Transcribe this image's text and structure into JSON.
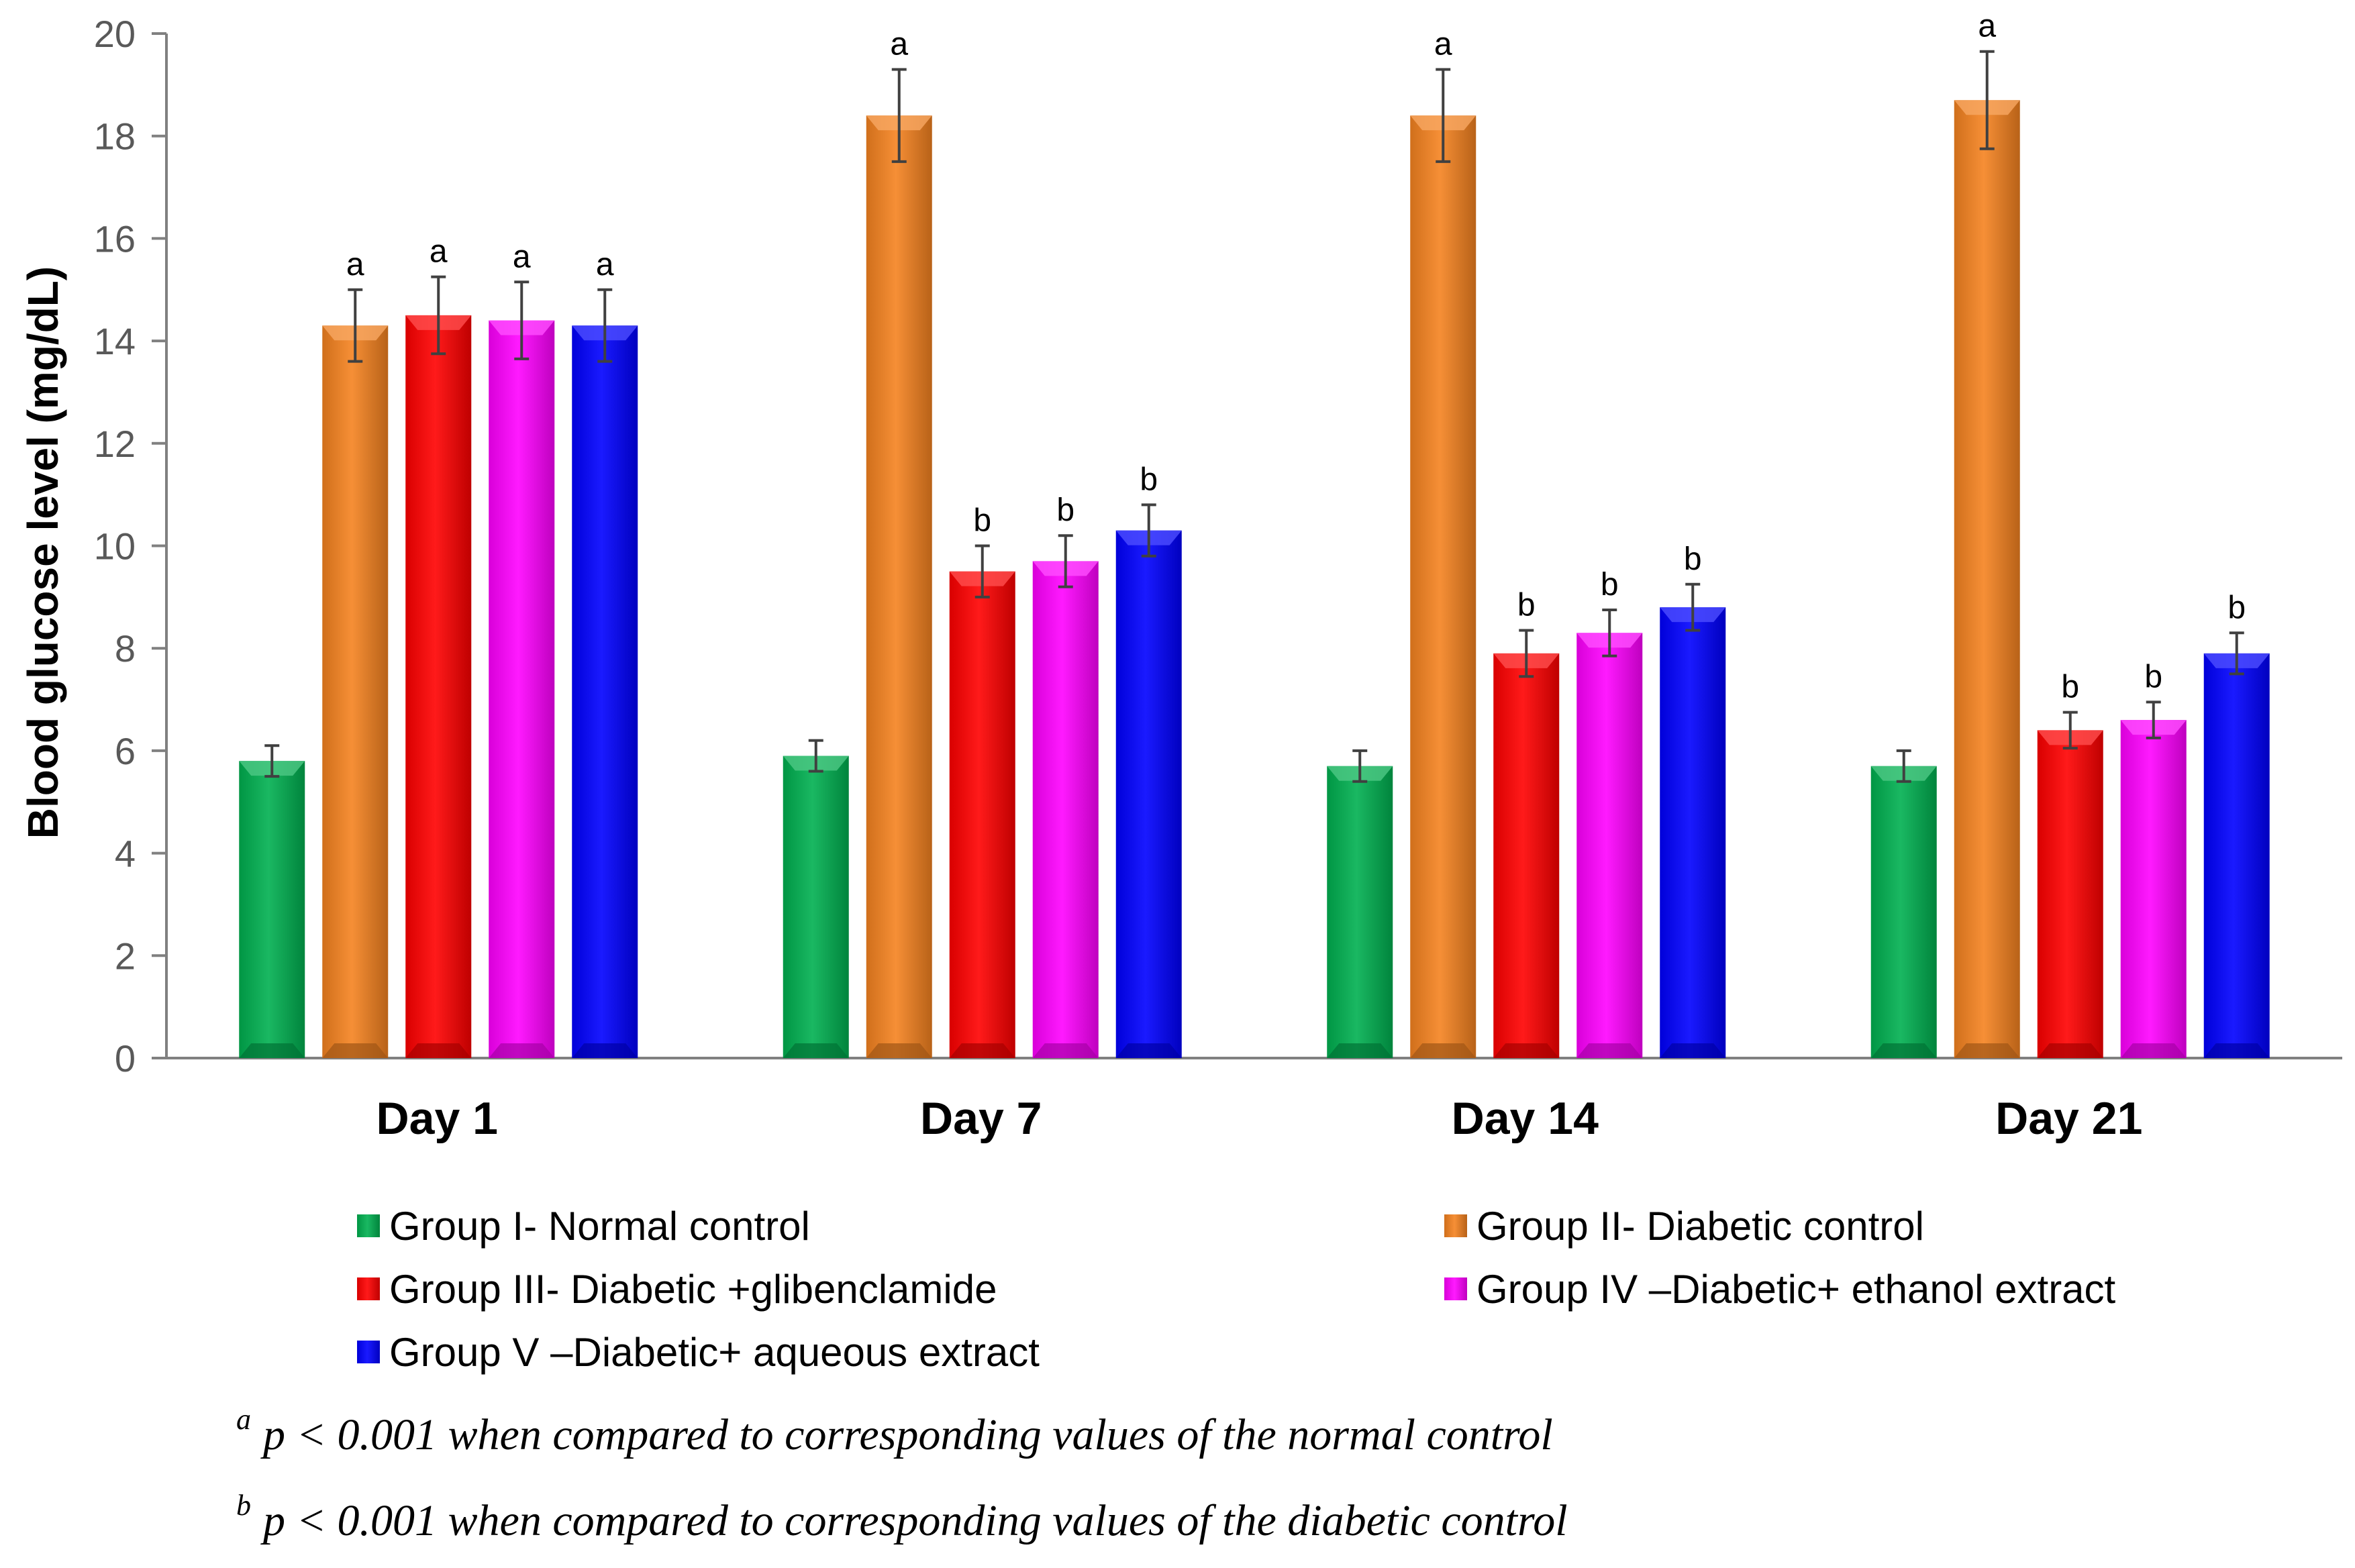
{
  "chart_data": {
    "type": "bar",
    "title": "",
    "xlabel": "",
    "ylabel": "Blood glucose level (mg/dL)",
    "ylim": [
      0,
      20
    ],
    "yticks": [
      0,
      2,
      4,
      6,
      8,
      10,
      12,
      14,
      16,
      18,
      20
    ],
    "grid": false,
    "legend_position": "bottom",
    "categories": [
      "Day 1",
      "Day 7",
      "Day 14",
      "Day 21"
    ],
    "series": [
      {
        "name": "Group I- Normal control",
        "color": "#00B050",
        "values": [
          5.8,
          5.9,
          5.7,
          5.7
        ],
        "errors": [
          0.3,
          0.3,
          0.3,
          0.3
        ],
        "significance": [
          "",
          "",
          "",
          ""
        ]
      },
      {
        "name": "Group II- Diabetic control",
        "color": "#F58220",
        "values": [
          14.3,
          18.4,
          18.4,
          18.7
        ],
        "errors": [
          0.7,
          0.9,
          0.9,
          0.95
        ],
        "significance": [
          "a",
          "a",
          "a",
          "a"
        ]
      },
      {
        "name": "Group III- Diabetic +glibenclamide",
        "color": "#FF0000",
        "values": [
          14.5,
          9.5,
          7.9,
          6.4
        ],
        "errors": [
          0.75,
          0.5,
          0.45,
          0.35
        ],
        "significance": [
          "a",
          "b",
          "b",
          "b"
        ]
      },
      {
        "name": "Group IV –Diabetic+ ethanol extract",
        "color": "#FF00FF",
        "values": [
          14.4,
          9.7,
          8.3,
          6.6
        ],
        "errors": [
          0.75,
          0.5,
          0.45,
          0.35
        ],
        "significance": [
          "a",
          "b",
          "b",
          "b"
        ]
      },
      {
        "name": "Group V –Diabetic+ aqueous extract",
        "color": "#0000FF",
        "values": [
          14.3,
          10.3,
          8.8,
          7.9
        ],
        "errors": [
          0.7,
          0.5,
          0.45,
          0.4
        ],
        "significance": [
          "a",
          "b",
          "b",
          "b"
        ]
      }
    ],
    "footnotes": [
      {
        "mark": "a",
        "text": "p < 0.001 when compared to corresponding values of the normal control"
      },
      {
        "mark": "b",
        "text": "p < 0.001 when compared to corresponding values of the diabetic control"
      }
    ]
  }
}
